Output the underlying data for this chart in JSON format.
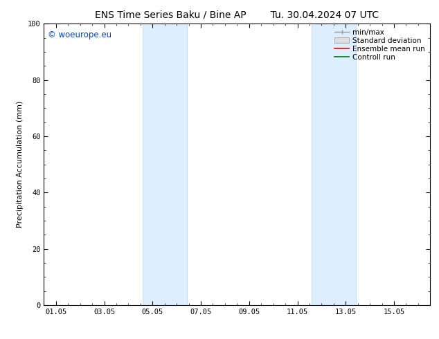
{
  "title_left": "ENS Time Series Baku / Bine AP",
  "title_right": "Tu. 30.04.2024 07 UTC",
  "ylabel": "Precipitation Accumulation (mm)",
  "ylim": [
    0,
    100
  ],
  "xtick_labels": [
    "01.05",
    "03.05",
    "05.05",
    "07.05",
    "09.05",
    "11.05",
    "13.05",
    "15.05"
  ],
  "xtick_positions": [
    0,
    2,
    4,
    6,
    8,
    10,
    12,
    14
  ],
  "ytick_labels": [
    "0",
    "20",
    "40",
    "60",
    "80",
    "100"
  ],
  "ytick_positions": [
    0,
    20,
    40,
    60,
    80,
    100
  ],
  "shaded_bands": [
    {
      "x_start": 3.58,
      "x_end": 5.42
    },
    {
      "x_start": 10.58,
      "x_end": 12.42
    }
  ],
  "xlim": [
    -0.5,
    15.5
  ],
  "shade_color": "#ddeeff",
  "shade_color_border": "#b8d4ee",
  "background_color": "#ffffff",
  "watermark_text": "© woeurope.eu",
  "watermark_color": "#0044cc",
  "title_fontsize": 10,
  "axis_label_fontsize": 8,
  "tick_fontsize": 7.5,
  "legend_fontsize": 7.5
}
